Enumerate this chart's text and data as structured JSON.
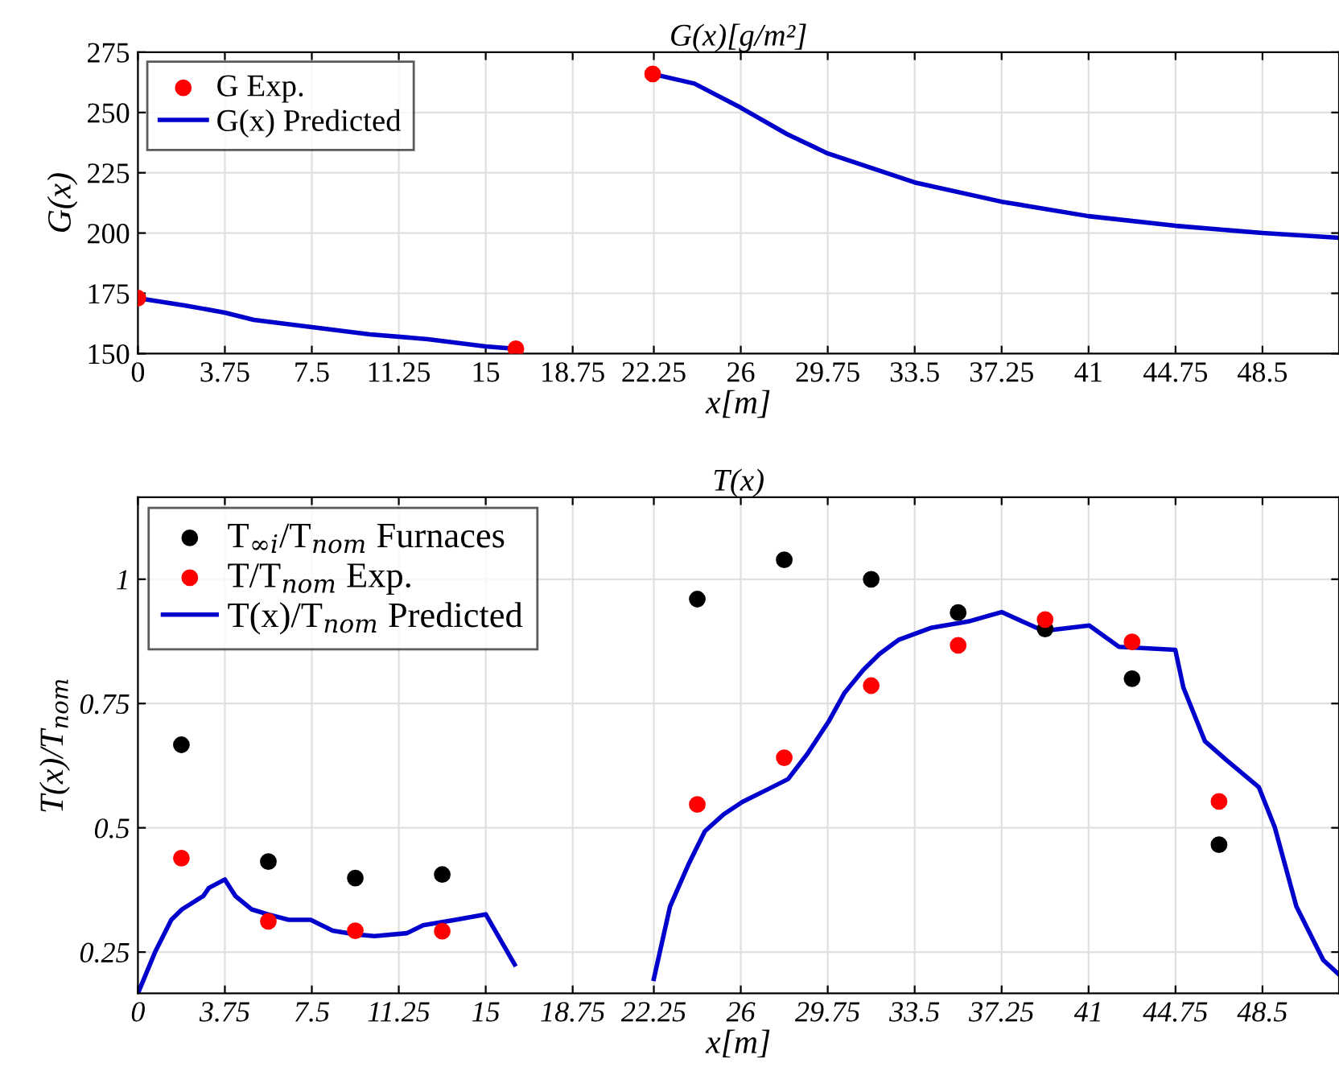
{
  "chart_data": [
    {
      "type": "scatter",
      "title": "G(x)[g/m²]",
      "xlabel": "x[m]",
      "ylabel": "G(x)",
      "xlim": [
        0,
        51.8
      ],
      "ylim": [
        150,
        275
      ],
      "xticks": [
        0,
        3.75,
        7.5,
        11.25,
        15,
        18.75,
        22.25,
        26,
        29.75,
        33.5,
        37.25,
        41,
        44.75,
        48.5
      ],
      "yticks": [
        150,
        175,
        200,
        225,
        250,
        275
      ],
      "grid": true,
      "legend": "top left",
      "series": [
        {
          "name": "G Exp.",
          "marker": "circle",
          "color": "#ff0000",
          "x": [
            0,
            16.3,
            22.2
          ],
          "values": [
            173,
            152,
            266
          ]
        },
        {
          "name": "G(x) Predicted",
          "type": "line",
          "marker": "none",
          "color": "#0000cc",
          "x": [
            0,
            2,
            3.75,
            5,
            7.5,
            10,
            12.5,
            15,
            16.3,
            19,
            22.2,
            24,
            26,
            28,
            29.75,
            33.5,
            37.25,
            41,
            44.75,
            48.5,
            51.8
          ],
          "values": [
            173,
            170,
            167,
            164,
            161,
            158,
            156,
            153,
            152,
            null,
            266,
            262,
            252,
            241,
            233,
            221,
            213,
            207,
            203,
            200,
            198
          ]
        }
      ]
    },
    {
      "type": "scatter",
      "title": "T(x)",
      "xlabel": "x[m]",
      "ylabel": "T(x)/T$_{nom}$",
      "xlim": [
        0,
        51.8
      ],
      "ylim": [
        0.167,
        1.165
      ],
      "xticks": [
        0,
        3.75,
        7.5,
        11.25,
        15,
        18.75,
        22.25,
        26,
        29.75,
        33.5,
        37.25,
        41,
        44.75,
        48.5
      ],
      "yticks": [
        0.25,
        0.5,
        0.75,
        1
      ],
      "grid": true,
      "legend": "top left",
      "series": [
        {
          "name": "T$_{∞i}$/T$_{nom}$ Furnaces",
          "marker": "circle",
          "color": "#000000",
          "x": [
            1.875,
            5.625,
            9.375,
            13.125,
            24.125,
            27.875,
            31.625,
            35.375,
            39.125,
            42.875,
            46.625
          ],
          "values": [
            0.667,
            0.432,
            0.399,
            0.406,
            0.96,
            1.039,
            1.0,
            0.933,
            0.9,
            0.8,
            0.466
          ]
        },
        {
          "name": "T/T$_{nom}$ Exp.",
          "marker": "circle",
          "color": "#ff0000",
          "x": [
            1.875,
            5.625,
            9.375,
            13.125,
            24.125,
            27.875,
            31.625,
            35.375,
            39.125,
            42.875,
            46.625
          ],
          "values": [
            0.439,
            0.312,
            0.293,
            0.292,
            0.547,
            0.641,
            0.786,
            0.867,
            0.919,
            0.874,
            0.553
          ]
        },
        {
          "name": "T(x)/T$_{nom}$ Predicted",
          "type": "line",
          "marker": "none",
          "color": "#0000cc",
          "x": [
            0,
            0.74,
            1.44,
            1.9,
            2.82,
            3.06,
            3.75,
            4.2,
            4.9,
            5.6,
            6.5,
            7.45,
            8.4,
            9.3,
            10.2,
            11.6,
            12.3,
            13.7,
            15,
            16.25,
            19,
            22.25,
            22.95,
            23.76,
            24.45,
            25.26,
            26.07,
            27.23,
            28.04,
            28.86,
            29.78,
            30.48,
            31.29,
            31.99,
            32.8,
            34.19,
            35.81,
            37.25,
            39.06,
            41.03,
            42.31,
            44.74,
            45.09,
            46.02,
            46.95,
            48.34,
            49.03,
            49.96,
            51.12,
            51.8
          ],
          "values": [
            0.167,
            0.25,
            0.315,
            0.336,
            0.363,
            0.379,
            0.396,
            0.363,
            0.336,
            0.326,
            0.315,
            0.315,
            0.293,
            0.286,
            0.282,
            0.288,
            0.304,
            0.315,
            0.326,
            0.225,
            null,
            0.196,
            0.342,
            0.428,
            0.493,
            0.527,
            0.552,
            0.579,
            0.598,
            0.648,
            0.713,
            0.772,
            0.818,
            0.85,
            0.878,
            0.902,
            0.915,
            0.934,
            0.896,
            0.907,
            0.864,
            0.858,
            0.782,
            0.674,
            0.636,
            0.582,
            0.501,
            0.342,
            0.234,
            0.205
          ]
        }
      ]
    }
  ]
}
